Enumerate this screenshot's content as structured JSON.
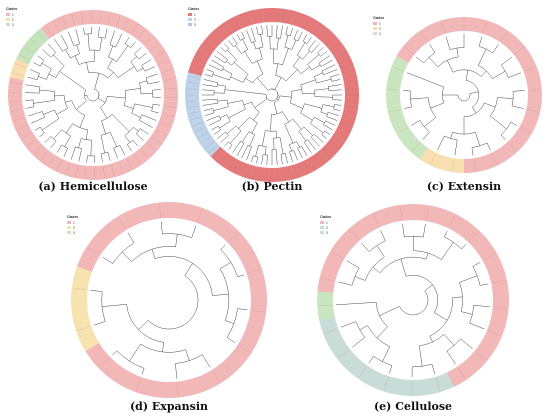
{
  "panels": [
    {
      "id": "a",
      "caption": "(a) Hemicellulose",
      "legend": {
        "title": "Clades",
        "labels": [
          "1",
          "2",
          "3"
        ]
      },
      "clades": [
        {
          "label": "1",
          "color": "#f2b8b8",
          "tips": 48
        },
        {
          "label": "2",
          "color": "#f7dfb0",
          "tips": 2
        },
        {
          "label": "3",
          "color": "#c5e3bd",
          "tips": 4
        }
      ],
      "tip_labels": []
    },
    {
      "id": "b",
      "caption": "(b) Pectin",
      "legend": {
        "title": "Clades",
        "labels": [
          "1",
          "2",
          "3"
        ]
      },
      "clades": [
        {
          "label": "1",
          "color": "#e47a7a",
          "tips": 70
        },
        {
          "label": "2",
          "color": "#bcd3ea",
          "tips": 14
        },
        {
          "label": "3",
          "color": "#b7c7d9",
          "tips": 0
        }
      ],
      "tip_labels": []
    },
    {
      "id": "c",
      "caption": "(c) Extensin",
      "legend": {
        "title": "Clades",
        "labels": [
          "1",
          "2",
          "3"
        ]
      },
      "clades": [
        {
          "label": "1",
          "color": "#f2b8b8",
          "tips": 14
        },
        {
          "label": "2",
          "color": "#f7dfb0",
          "tips": 2
        },
        {
          "label": "3",
          "color": "#c9e6c1",
          "tips": 5
        }
      ],
      "tip_labels": []
    },
    {
      "id": "d",
      "caption": "(d) Expansin",
      "legend": {
        "title": "Clades",
        "labels": [
          "1",
          "2",
          "3"
        ]
      },
      "clades": [
        {
          "label": "1",
          "color": "#f2b8b8",
          "tips": 12
        },
        {
          "label": "2",
          "color": "#f7e3b0",
          "tips": 2
        },
        {
          "label": "3",
          "color": "#c9e6c1",
          "tips": 0
        }
      ],
      "tip_labels": []
    },
    {
      "id": "e",
      "caption": "(e) Cellulose",
      "legend": {
        "title": "Clades",
        "labels": [
          "1",
          "2",
          "3"
        ]
      },
      "clades": [
        {
          "label": "1",
          "color": "#f2b8b8",
          "tips": 14
        },
        {
          "label": "2",
          "color": "#c8dcd8",
          "tips": 6
        },
        {
          "label": "3",
          "color": "#c9e6c1",
          "tips": 1
        }
      ],
      "tip_labels": []
    }
  ]
}
